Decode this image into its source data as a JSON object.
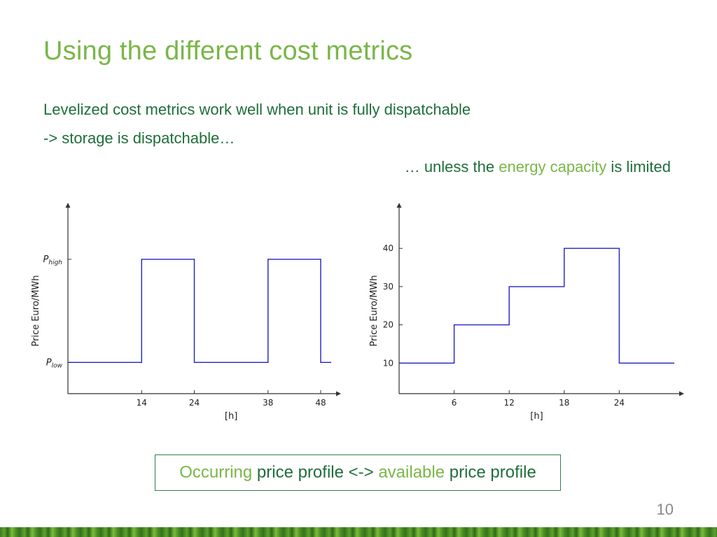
{
  "slide": {
    "title": "Using the different cost metrics",
    "line1": "Levelized cost metrics work well when unit is fully dispatchable",
    "line2": "-> storage is dispatchable…",
    "line3": {
      "part1": "… unless the ",
      "hl": "energy capacity",
      "part2": " is limited"
    },
    "caption": {
      "hl1": "Occurring",
      "t1": " price profile <-> ",
      "hl2": "available",
      "t2": " price profile"
    },
    "page_number": "10"
  },
  "colors": {
    "title": "#7ab648",
    "text": "#1f6e3a",
    "line": "#2020c8",
    "axis": "#333333"
  },
  "chart_data": [
    {
      "type": "line",
      "step": true,
      "xlabel": "[h]",
      "ylabel": "Price Euro/MWh",
      "xlim": [
        0,
        50
      ],
      "ylim": [
        0,
        1.15
      ],
      "xticks": [
        14,
        24,
        38,
        48
      ],
      "yticks": [
        {
          "value": 0.2,
          "label": "P_low"
        },
        {
          "value": 0.86,
          "label": "P_high"
        }
      ],
      "series": [
        {
          "x": [
            0,
            14,
            14,
            24,
            24,
            38,
            38,
            48,
            48,
            50
          ],
          "y": [
            0.2,
            0.2,
            0.86,
            0.86,
            0.2,
            0.2,
            0.86,
            0.86,
            0.2,
            0.2
          ]
        }
      ]
    },
    {
      "type": "line",
      "step": true,
      "xlabel": "[h]",
      "ylabel": "Price Euro/MWh",
      "xlim": [
        0,
        30
      ],
      "ylim": [
        2,
        49
      ],
      "xticks": [
        6,
        12,
        18,
        24
      ],
      "yticks": [
        {
          "value": 10,
          "label": "10"
        },
        {
          "value": 20,
          "label": "20"
        },
        {
          "value": 30,
          "label": "30"
        },
        {
          "value": 40,
          "label": "40"
        }
      ],
      "series": [
        {
          "x": [
            0,
            6,
            6,
            12,
            12,
            18,
            18,
            24,
            24,
            30
          ],
          "y": [
            10,
            10,
            20,
            20,
            30,
            30,
            40,
            40,
            10,
            10
          ]
        }
      ]
    }
  ]
}
